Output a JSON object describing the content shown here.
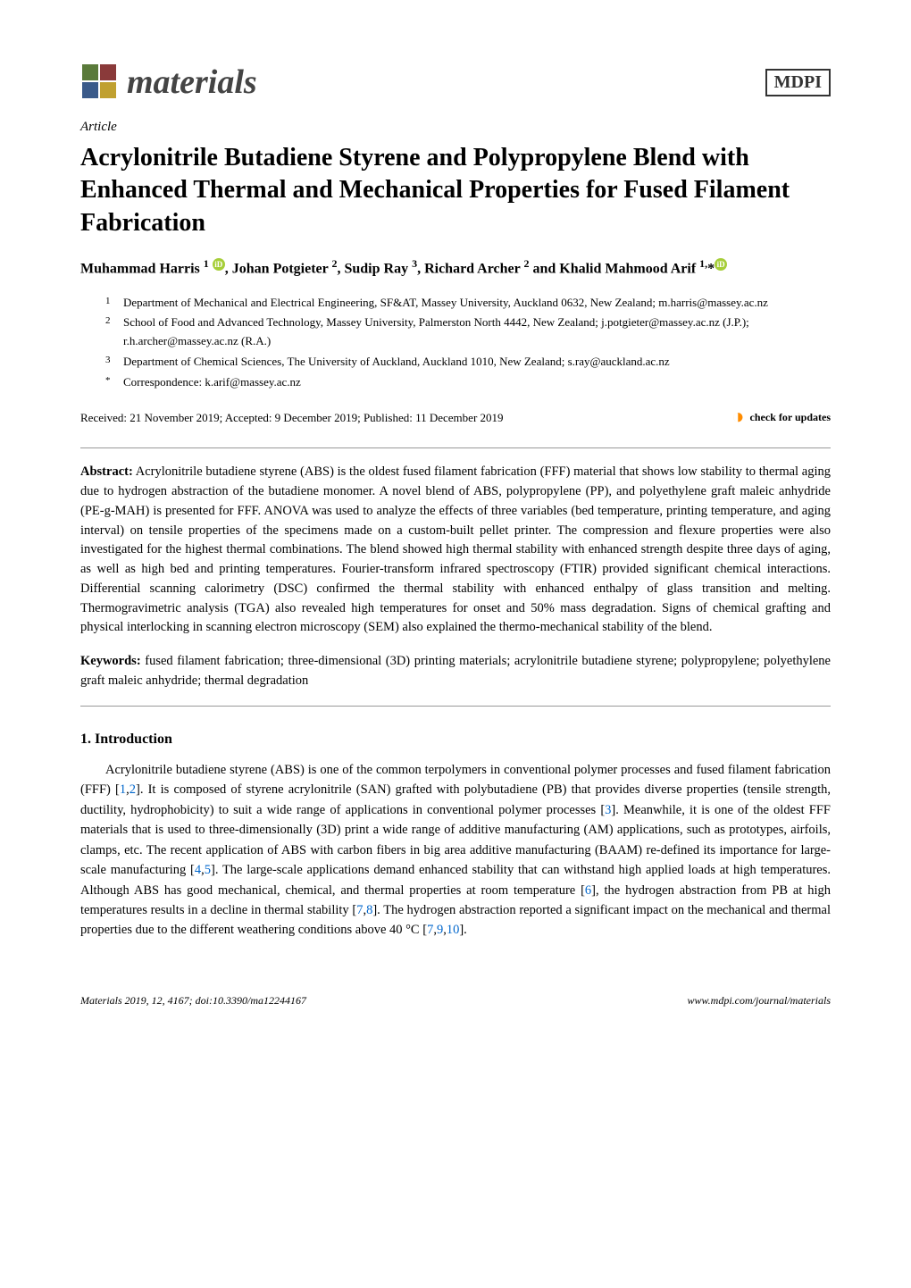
{
  "journal": {
    "name": "materials",
    "publisher": "MDPI"
  },
  "article_label": "Article",
  "title": "Acrylonitrile Butadiene Styrene and Polypropylene Blend with Enhanced Thermal and Mechanical Properties for Fused Filament Fabrication",
  "authors_html": "Muhammad Harris <sup>1</sup> <span class='orcid'>iD</span>, Johan Potgieter <sup>2</sup>, Sudip Ray <sup>3</sup>, Richard Archer <sup>2</sup> and Khalid Mahmood Arif <sup>1,</sup>*<span class='orcid'>iD</span>",
  "affiliations": [
    {
      "num": "1",
      "text": "Department of Mechanical and Electrical Engineering, SF&AT, Massey University, Auckland 0632, New Zealand; m.harris@massey.ac.nz"
    },
    {
      "num": "2",
      "text": "School of Food and Advanced Technology, Massey University, Palmerston North 4442, New Zealand; j.potgieter@massey.ac.nz (J.P.); r.h.archer@massey.ac.nz (R.A.)"
    },
    {
      "num": "3",
      "text": "Department of Chemical Sciences, The University of Auckland, Auckland 1010, New Zealand; s.ray@auckland.ac.nz"
    },
    {
      "num": "*",
      "text": "Correspondence: k.arif@massey.ac.nz"
    }
  ],
  "received": "Received: 21 November 2019; Accepted: 9 December 2019; Published: 11 December 2019",
  "check_updates": "check for updates",
  "abstract_label": "Abstract:",
  "abstract": "Acrylonitrile butadiene styrene (ABS) is the oldest fused filament fabrication (FFF) material that shows low stability to thermal aging due to hydrogen abstraction of the butadiene monomer. A novel blend of ABS, polypropylene (PP), and polyethylene graft maleic anhydride (PE-g-MAH) is presented for FFF. ANOVA was used to analyze the effects of three variables (bed temperature, printing temperature, and aging interval) on tensile properties of the specimens made on a custom-built pellet printer. The compression and flexure properties were also investigated for the highest thermal combinations. The blend showed high thermal stability with enhanced strength despite three days of aging, as well as high bed and printing temperatures. Fourier-transform infrared spectroscopy (FTIR) provided significant chemical interactions. Differential scanning calorimetry (DSC) confirmed the thermal stability with enhanced enthalpy of glass transition and melting. Thermogravimetric analysis (TGA) also revealed high temperatures for onset and 50% mass degradation. Signs of chemical grafting and physical interlocking in scanning electron microscopy (SEM) also explained the thermo-mechanical stability of the blend.",
  "keywords_label": "Keywords:",
  "keywords": "fused filament fabrication; three-dimensional (3D) printing materials; acrylonitrile butadiene styrene; polypropylene; polyethylene graft maleic anhydride; thermal degradation",
  "section1": {
    "heading": "1. Introduction",
    "body_html": "Acrylonitrile butadiene styrene (ABS) is one of the common terpolymers in conventional polymer processes and fused filament fabrication (FFF) [<span class='ref-link'>1</span>,<span class='ref-link'>2</span>]. It is composed of styrene acrylonitrile (SAN) grafted with polybutadiene (PB) that provides diverse properties (tensile strength, ductility, hydrophobicity) to suit a wide range of applications in conventional polymer processes [<span class='ref-link'>3</span>]. Meanwhile, it is one of the oldest FFF materials that is used to three-dimensionally (3D) print a wide range of additive manufacturing (AM) applications, such as prototypes, airfoils, clamps, etc. The recent application of ABS with carbon fibers in big area additive manufacturing (BAAM) re-defined its importance for large-scale manufacturing [<span class='ref-link'>4</span>,<span class='ref-link'>5</span>]. The large-scale applications demand enhanced stability that can withstand high applied loads at high temperatures. Although ABS has good mechanical, chemical, and thermal properties at room temperature [<span class='ref-link'>6</span>], the hydrogen abstraction from PB at high temperatures results in a decline in thermal stability [<span class='ref-link'>7</span>,<span class='ref-link'>8</span>]. The hydrogen abstraction reported a significant impact on the mechanical and thermal properties due to the different weathering conditions above 40 °C [<span class='ref-link'>7</span>,<span class='ref-link'>9</span>,<span class='ref-link'>10</span>]."
  },
  "footer": {
    "left": "Materials 2019, 12, 4167; doi:10.3390/ma12244167",
    "right": "www.mdpi.com/journal/materials"
  },
  "colors": {
    "ref_link": "#0066cc",
    "orcid_bg": "#a6ce39",
    "check_icon": "#ff8c00",
    "text": "#000000",
    "bg": "#ffffff"
  }
}
